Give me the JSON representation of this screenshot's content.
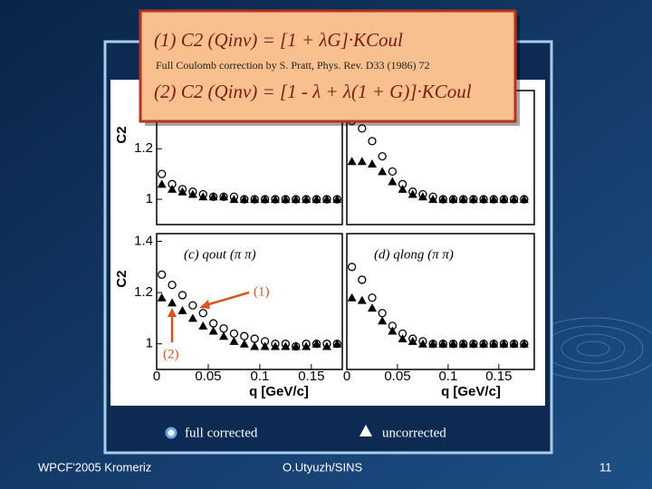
{
  "slide": {
    "footer_left": "WPCF'2005 Kromeriz",
    "footer_center": "O.Utyuzh/SINS",
    "page_number": "11"
  },
  "formula_box": {
    "formula_1": "(1)   C2 (Qinv) = [1 + λG]·KCoul",
    "reference": "Full Coulomb correction by S. Pratt, Phys. Rev. D33 (1986) 72",
    "formula_2": "(2)   C2 (Qinv) = [1 - λ + λ(1 + G)]·KCoul"
  },
  "chart_data": [
    {
      "type": "scatter",
      "ylabel": "C2",
      "x": [
        0.005,
        0.015,
        0.025,
        0.035,
        0.045,
        0.055,
        0.065,
        0.075,
        0.085,
        0.095,
        0.105,
        0.115,
        0.125,
        0.135,
        0.145,
        0.155,
        0.165,
        0.175
      ],
      "series": [
        {
          "name": "uncorrected",
          "color": "#000000",
          "values": [
            1.06,
            1.04,
            1.03,
            1.02,
            1.01,
            1.01,
            1.01,
            1.0,
            1.0,
            1.0,
            1.0,
            1.0,
            1.0,
            1.0,
            1.0,
            1.0,
            1.0,
            1.0
          ]
        },
        {
          "name": "full corrected",
          "color": "#000000",
          "values": [
            1.1,
            1.06,
            1.04,
            1.03,
            1.02,
            1.01,
            1.01,
            1.01,
            1.0,
            1.0,
            1.0,
            1.0,
            1.0,
            1.0,
            1.0,
            1.0,
            1.0,
            1.0
          ]
        }
      ],
      "xlim": [
        0,
        0.18
      ],
      "ylim": [
        0.9,
        1.43
      ],
      "yticks": [
        1,
        1.2
      ]
    },
    {
      "type": "scatter",
      "x": [
        0.005,
        0.015,
        0.025,
        0.035,
        0.045,
        0.055,
        0.065,
        0.075,
        0.085,
        0.095,
        0.105,
        0.115,
        0.125,
        0.135,
        0.145,
        0.155,
        0.165,
        0.175
      ],
      "series": [
        {
          "name": "uncorrected",
          "color": "#000000",
          "values": [
            1.15,
            1.15,
            1.14,
            1.11,
            1.07,
            1.04,
            1.02,
            1.01,
            1.0,
            1.0,
            1.0,
            1.0,
            1.0,
            1.0,
            1.0,
            1.0,
            1.0,
            1.0
          ]
        },
        {
          "name": "full corrected",
          "color": "#000000",
          "values": [
            1.31,
            1.28,
            1.23,
            1.17,
            1.11,
            1.06,
            1.03,
            1.02,
            1.01,
            1.0,
            1.0,
            1.0,
            1.0,
            1.0,
            1.0,
            1.0,
            1.0,
            1.0
          ]
        }
      ],
      "xlim": [
        0,
        0.185
      ],
      "ylim": [
        0.9,
        1.43
      ]
    },
    {
      "type": "scatter",
      "title": "(c)  qout (π π)",
      "ylabel": "C2",
      "xlabel": "q [GeV/c]",
      "annotations": [
        "(1)",
        "(2)"
      ],
      "x": [
        0.005,
        0.015,
        0.025,
        0.035,
        0.045,
        0.055,
        0.065,
        0.075,
        0.085,
        0.095,
        0.105,
        0.115,
        0.125,
        0.135,
        0.145,
        0.155,
        0.165,
        0.175
      ],
      "series": [
        {
          "name": "uncorrected",
          "color": "#000000",
          "values": [
            1.18,
            1.16,
            1.13,
            1.1,
            1.07,
            1.05,
            1.03,
            1.01,
            1.0,
            0.99,
            0.99,
            0.99,
            0.99,
            0.99,
            0.99,
            1.0,
            0.99,
            1.0
          ]
        },
        {
          "name": "full corrected",
          "color": "#000000",
          "values": [
            1.27,
            1.23,
            1.19,
            1.15,
            1.12,
            1.08,
            1.06,
            1.04,
            1.03,
            1.02,
            1.01,
            1.0,
            1.0,
            0.99,
            1.0,
            1.0,
            1.0,
            1.0
          ]
        }
      ],
      "xlim": [
        0,
        0.18
      ],
      "ylim": [
        0.9,
        1.43
      ],
      "xticks": [
        0,
        0.05,
        0.1,
        0.15
      ],
      "yticks": [
        1,
        1.2,
        1.4
      ]
    },
    {
      "type": "scatter",
      "title": "(d)  qlong (π π)",
      "xlabel": "q [GeV/c]",
      "x": [
        0.005,
        0.015,
        0.025,
        0.035,
        0.045,
        0.055,
        0.065,
        0.075,
        0.085,
        0.095,
        0.105,
        0.115,
        0.125,
        0.135,
        0.145,
        0.155,
        0.165,
        0.175
      ],
      "series": [
        {
          "name": "uncorrected",
          "color": "#000000",
          "values": [
            1.18,
            1.17,
            1.14,
            1.09,
            1.05,
            1.02,
            1.01,
            1.0,
            1.0,
            1.0,
            1.0,
            1.0,
            1.0,
            1.0,
            1.0,
            1.0,
            1.0,
            1.0
          ]
        },
        {
          "name": "full corrected",
          "color": "#000000",
          "values": [
            1.3,
            1.25,
            1.18,
            1.12,
            1.07,
            1.04,
            1.02,
            1.01,
            1.0,
            1.0,
            1.0,
            1.0,
            1.0,
            1.0,
            1.0,
            1.0,
            1.0,
            1.0
          ]
        }
      ],
      "xlim": [
        0,
        0.185
      ],
      "ylim": [
        0.9,
        1.43
      ],
      "xticks": [
        0,
        0.05,
        0.1,
        0.15
      ]
    }
  ]
}
